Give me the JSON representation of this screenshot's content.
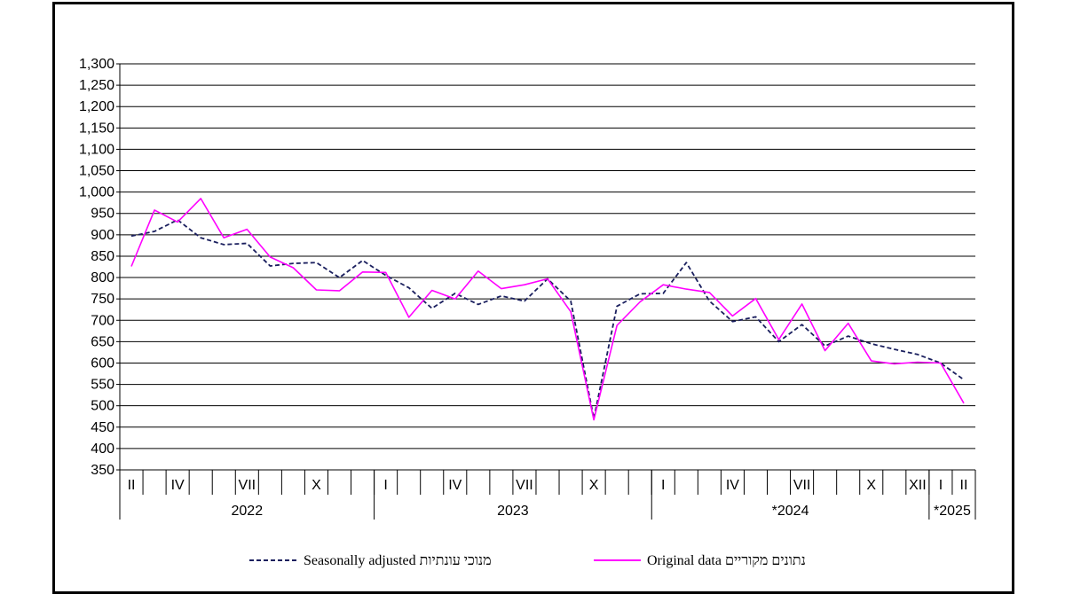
{
  "chart_data": {
    "type": "line",
    "ylim": [
      350,
      1300
    ],
    "y_ticks": [
      "350",
      "400",
      "450",
      "500",
      "550",
      "600",
      "650",
      "700",
      "750",
      "800",
      "850",
      "900",
      "950",
      "1,000",
      "1,050",
      "1,100",
      "1,150",
      "1,200",
      "1,250",
      "1,300"
    ],
    "grid": true,
    "month_labels": [
      {
        "index": 0,
        "label": "II"
      },
      {
        "index": 2,
        "label": "IV"
      },
      {
        "index": 5,
        "label": "VII"
      },
      {
        "index": 8,
        "label": "X"
      },
      {
        "index": 11,
        "label": "I"
      },
      {
        "index": 14,
        "label": "IV"
      },
      {
        "index": 17,
        "label": "VII"
      },
      {
        "index": 20,
        "label": "X"
      },
      {
        "index": 23,
        "label": "I"
      },
      {
        "index": 26,
        "label": "IV"
      },
      {
        "index": 29,
        "label": "VII"
      },
      {
        "index": 32,
        "label": "X"
      },
      {
        "index": 34,
        "label": "XII"
      },
      {
        "index": 35,
        "label": "I"
      },
      {
        "index": 36,
        "label": "II"
      }
    ],
    "year_groups": [
      {
        "label": "2022",
        "start": 0,
        "end": 10
      },
      {
        "label": "2023",
        "start": 11,
        "end": 22
      },
      {
        "label": "*2024",
        "start": 23,
        "end": 34
      },
      {
        "label": "*2025",
        "start": 35,
        "end": 36
      }
    ],
    "series": [
      {
        "name": "Seasonally adjusted מנוכי עונתיות",
        "color": "#1a1f5e",
        "style": "dashed",
        "values": [
          897,
          908,
          935,
          893,
          877,
          880,
          827,
          833,
          835,
          800,
          840,
          805,
          776,
          728,
          763,
          737,
          757,
          745,
          797,
          745,
          470,
          733,
          762,
          763,
          835,
          745,
          697,
          708,
          650,
          690,
          640,
          663,
          645,
          632,
          620,
          600,
          561
        ]
      },
      {
        "name": "Original data נתונים מקוריים",
        "color": "#ff00ff",
        "style": "solid",
        "values": [
          826,
          958,
          930,
          985,
          893,
          913,
          848,
          823,
          771,
          769,
          813,
          812,
          707,
          770,
          750,
          815,
          774,
          783,
          797,
          720,
          467,
          688,
          743,
          783,
          773,
          765,
          710,
          751,
          655,
          738,
          629,
          693,
          605,
          598,
          602,
          600,
          506
        ]
      }
    ]
  },
  "legend": {
    "seasonal": "Seasonally adjusted מנוכי עונתיות",
    "original": "Original data נתונים מקוריים"
  }
}
